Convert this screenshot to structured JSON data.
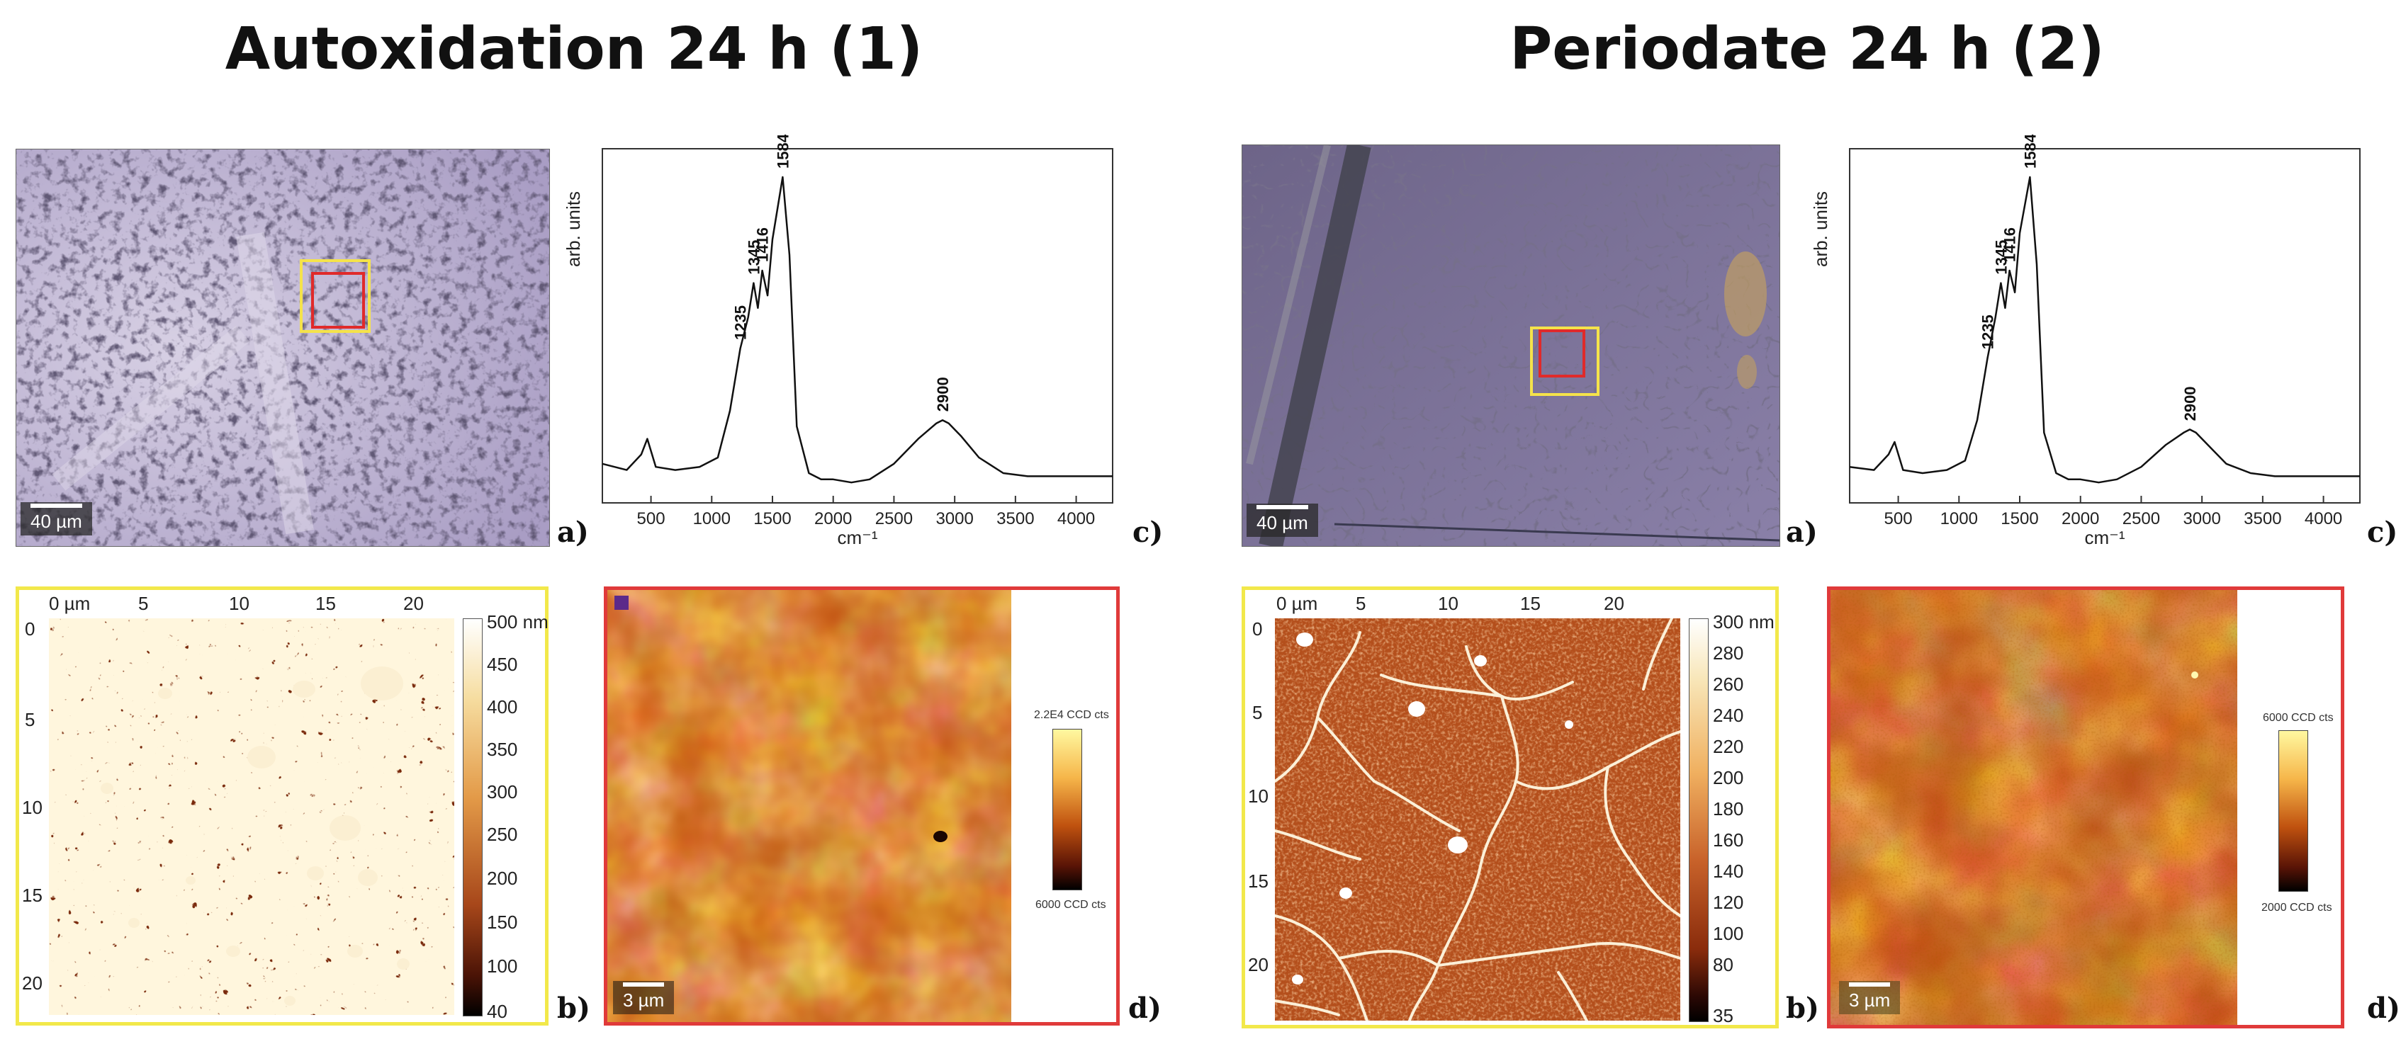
{
  "titles": {
    "left": "Autoxidation 24 h (1)",
    "right": "Periodate 24 h (2)"
  },
  "panel_letters": {
    "a": "a)",
    "b": "b)",
    "c": "c)",
    "d": "d)"
  },
  "left": {
    "optical": {
      "scale_label": "40 µm"
    },
    "afm": {
      "x_ticks": [
        "0 µm",
        "5",
        "10",
        "15",
        "20"
      ],
      "y_ticks": [
        "0",
        "5",
        "10",
        "15",
        "20"
      ],
      "colorbar_labels": [
        "500 nm",
        "450",
        "400",
        "350",
        "300",
        "250",
        "200",
        "150",
        "100",
        "40"
      ]
    },
    "raman_map": {
      "scale_label": "3 µm",
      "colorbar_top": "2.2E4 CCD cts",
      "colorbar_bottom": "6000 CCD cts"
    }
  },
  "right": {
    "optical": {
      "scale_label": "40 µm"
    },
    "afm": {
      "x_ticks": [
        "0 µm",
        "5",
        "10",
        "15",
        "20"
      ],
      "y_ticks": [
        "0",
        "5",
        "10",
        "15",
        "20"
      ],
      "colorbar_labels": [
        "300 nm",
        "280",
        "260",
        "240",
        "220",
        "200",
        "180",
        "160",
        "140",
        "120",
        "100",
        "80",
        "35"
      ]
    },
    "raman_map": {
      "scale_label": "3 µm",
      "colorbar_top": "6000 CCD cts",
      "colorbar_bottom": "2000 CCD cts"
    }
  },
  "chart_data": [
    {
      "type": "line",
      "xlabel": "cm⁻¹",
      "ylabel": "arb. units",
      "xlim": [
        100,
        4300
      ],
      "x_ticks": [
        500,
        1000,
        1500,
        2000,
        2500,
        3000,
        3500,
        4000
      ],
      "y_ticks": [],
      "grid": false,
      "series": [
        {
          "x": [
            100,
            300,
            420,
            470,
            540,
            700,
            900,
            1050,
            1150,
            1235,
            1300,
            1345,
            1380,
            1416,
            1460,
            1500,
            1584,
            1640,
            1700,
            1800,
            1900,
            2000,
            2150,
            2300,
            2500,
            2700,
            2850,
            2900,
            2950,
            3050,
            3200,
            3400,
            3600,
            3800,
            4000,
            4300
          ],
          "y": [
            0.08,
            0.06,
            0.11,
            0.16,
            0.07,
            0.06,
            0.07,
            0.1,
            0.25,
            0.45,
            0.55,
            0.66,
            0.58,
            0.7,
            0.62,
            0.8,
            1.0,
            0.75,
            0.2,
            0.05,
            0.03,
            0.03,
            0.02,
            0.03,
            0.08,
            0.16,
            0.21,
            0.22,
            0.21,
            0.17,
            0.1,
            0.05,
            0.04,
            0.04,
            0.04,
            0.04
          ]
        }
      ],
      "annotations": [
        {
          "x": 1235,
          "y": 0.45,
          "text": "1235"
        },
        {
          "x": 1345,
          "y": 0.66,
          "text": "1345"
        },
        {
          "x": 1416,
          "y": 0.7,
          "text": "1416"
        },
        {
          "x": 1584,
          "y": 1.0,
          "text": "1584"
        },
        {
          "x": 2900,
          "y": 0.22,
          "text": "2900"
        }
      ]
    },
    {
      "type": "line",
      "xlabel": "cm⁻¹",
      "ylabel": "arb. units",
      "xlim": [
        100,
        4300
      ],
      "x_ticks": [
        500,
        1000,
        1500,
        2000,
        2500,
        3000,
        3500,
        4000
      ],
      "y_ticks": [],
      "grid": false,
      "series": [
        {
          "x": [
            100,
            300,
            420,
            470,
            540,
            700,
            900,
            1050,
            1150,
            1235,
            1300,
            1345,
            1380,
            1416,
            1460,
            1500,
            1584,
            1640,
            1700,
            1800,
            1900,
            2000,
            2150,
            2300,
            2500,
            2700,
            2850,
            2900,
            2950,
            3050,
            3200,
            3400,
            3600,
            3800,
            4000,
            4300
          ],
          "y": [
            0.07,
            0.06,
            0.11,
            0.15,
            0.06,
            0.05,
            0.06,
            0.09,
            0.22,
            0.42,
            0.55,
            0.66,
            0.58,
            0.7,
            0.63,
            0.82,
            1.0,
            0.72,
            0.18,
            0.05,
            0.03,
            0.03,
            0.02,
            0.03,
            0.07,
            0.14,
            0.18,
            0.19,
            0.18,
            0.14,
            0.08,
            0.05,
            0.04,
            0.04,
            0.04,
            0.04
          ]
        }
      ],
      "annotations": [
        {
          "x": 1235,
          "y": 0.42,
          "text": "1235"
        },
        {
          "x": 1345,
          "y": 0.66,
          "text": "1345"
        },
        {
          "x": 1416,
          "y": 0.7,
          "text": "1416"
        },
        {
          "x": 1584,
          "y": 1.0,
          "text": "1584"
        },
        {
          "x": 2900,
          "y": 0.19,
          "text": "2900"
        }
      ]
    }
  ]
}
